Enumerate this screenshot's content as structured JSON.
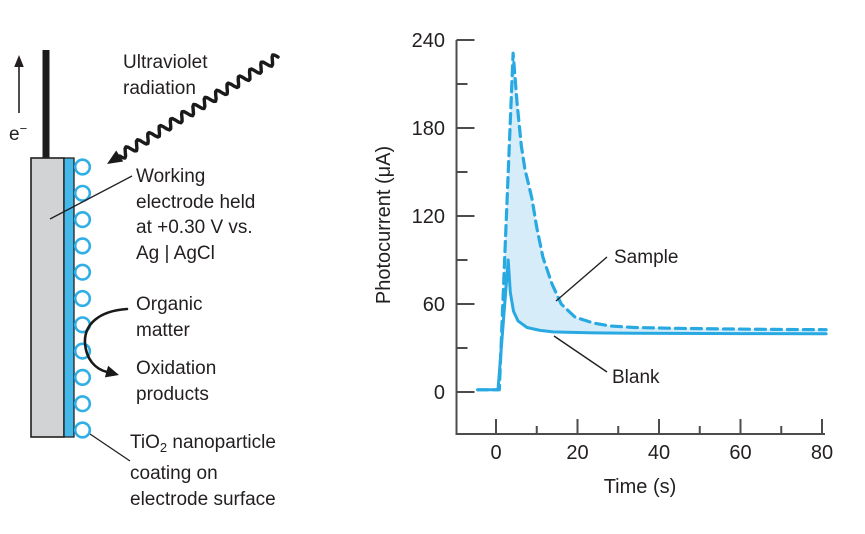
{
  "diagram": {
    "electron": {
      "base": "e",
      "sup": "−"
    },
    "uv": {
      "line1": "Ultraviolet",
      "line2": "radiation"
    },
    "working": {
      "line1": "Working",
      "line2": "electrode held",
      "line3": "at +0.30 V vs.",
      "line4": "Ag | AgCl"
    },
    "organic": {
      "line1": "Organic",
      "line2": "matter"
    },
    "oxidation": {
      "line1": "Oxidation",
      "line2": "products"
    },
    "tio2": {
      "pre": "TiO",
      "sub": "2",
      "post": " nanoparticle",
      "line2": "coating on",
      "line3": "electrode surface"
    },
    "colors": {
      "electrode_gray": "#d2d3d5",
      "coating_blue": "#44b8e9",
      "nanoparticle_stroke": "#2fafe6",
      "ink": "#231f20"
    }
  },
  "chart_data": {
    "type": "line",
    "title": "",
    "xlabel": "Time (s)",
    "ylabel": "Photocurrent (μA)",
    "xlim": [
      -10,
      81
    ],
    "ylim": [
      0,
      240
    ],
    "x_ticks_major": [
      0,
      20,
      40,
      60,
      80
    ],
    "x_ticks_minor": [
      10,
      30,
      50,
      70
    ],
    "y_ticks_major": [
      0,
      60,
      120,
      180,
      240
    ],
    "y_ticks_minor": [
      30,
      90,
      150,
      210
    ],
    "grid": false,
    "legend_position": "inline-annotations",
    "line_color": "#29a9e2",
    "fill_between_color": "#d6ecf9",
    "axis_color": "#4c4c4e",
    "series": [
      {
        "name": "Sample",
        "line_style": "dashed",
        "points": [
          [
            -4.5,
            1.5
          ],
          [
            0.8,
            1.5
          ],
          [
            4.2,
            231
          ],
          [
            5.2,
            196
          ],
          [
            6.2,
            168
          ],
          [
            7.1,
            152
          ],
          [
            8.8,
            132
          ],
          [
            10,
            112
          ],
          [
            11.5,
            92
          ],
          [
            13.7,
            74
          ],
          [
            16,
            60
          ],
          [
            19.4,
            51
          ],
          [
            24,
            47
          ],
          [
            28,
            45
          ],
          [
            34,
            44
          ],
          [
            42,
            43.5
          ],
          [
            55,
            43
          ],
          [
            68,
            42.7
          ],
          [
            81,
            42.5
          ]
        ]
      },
      {
        "name": "Blank",
        "line_style": "solid",
        "points": [
          [
            -4.5,
            1.5
          ],
          [
            0.5,
            1.5
          ],
          [
            3,
            90
          ],
          [
            3.5,
            68
          ],
          [
            4.3,
            55
          ],
          [
            5.4,
            48.5
          ],
          [
            7.6,
            44
          ],
          [
            10.8,
            42
          ],
          [
            14,
            41
          ],
          [
            17.3,
            40.7
          ],
          [
            24,
            40.3
          ],
          [
            35,
            40
          ],
          [
            60,
            39.8
          ],
          [
            81,
            39.7
          ]
        ]
      }
    ],
    "fill_between": {
      "upper": "Sample",
      "lower": "Blank"
    }
  }
}
